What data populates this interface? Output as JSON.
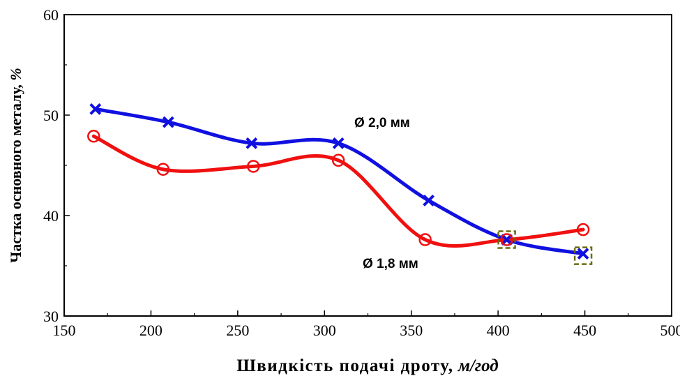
{
  "chart_data": {
    "type": "line",
    "title": "",
    "xlabel": "Швидкість подачі дроту,",
    "xlabel_unit": "м/год",
    "ylabel": "Частка основного металу,",
    "ylabel_unit": "%",
    "xlim": [
      150,
      500
    ],
    "ylim": [
      30,
      60
    ],
    "xticks": [
      "150",
      "200",
      "250",
      "300",
      "350",
      "400",
      "450",
      "500"
    ],
    "yticks": [
      "30",
      "40",
      "50",
      "60"
    ],
    "grid": false,
    "series": [
      {
        "name": "Ø 2,0 мм",
        "color": "#1010e0",
        "marker": "x",
        "x": [
          168,
          210,
          258,
          308,
          360,
          405,
          449
        ],
        "y": [
          50.6,
          49.3,
          47.2,
          47.2,
          41.5,
          37.6,
          36.2
        ]
      },
      {
        "name": "Ø 1,8 мм",
        "color": "#f01010",
        "marker": "circle",
        "x": [
          167,
          207,
          259,
          308,
          358,
          405,
          449
        ],
        "y": [
          47.9,
          44.6,
          44.9,
          45.5,
          37.6,
          37.6,
          38.6
        ]
      }
    ],
    "highlight_boxes": {
      "color": "#6b6b10",
      "points": [
        [
          405,
          37.6
        ],
        [
          449,
          36.0
        ]
      ]
    }
  }
}
